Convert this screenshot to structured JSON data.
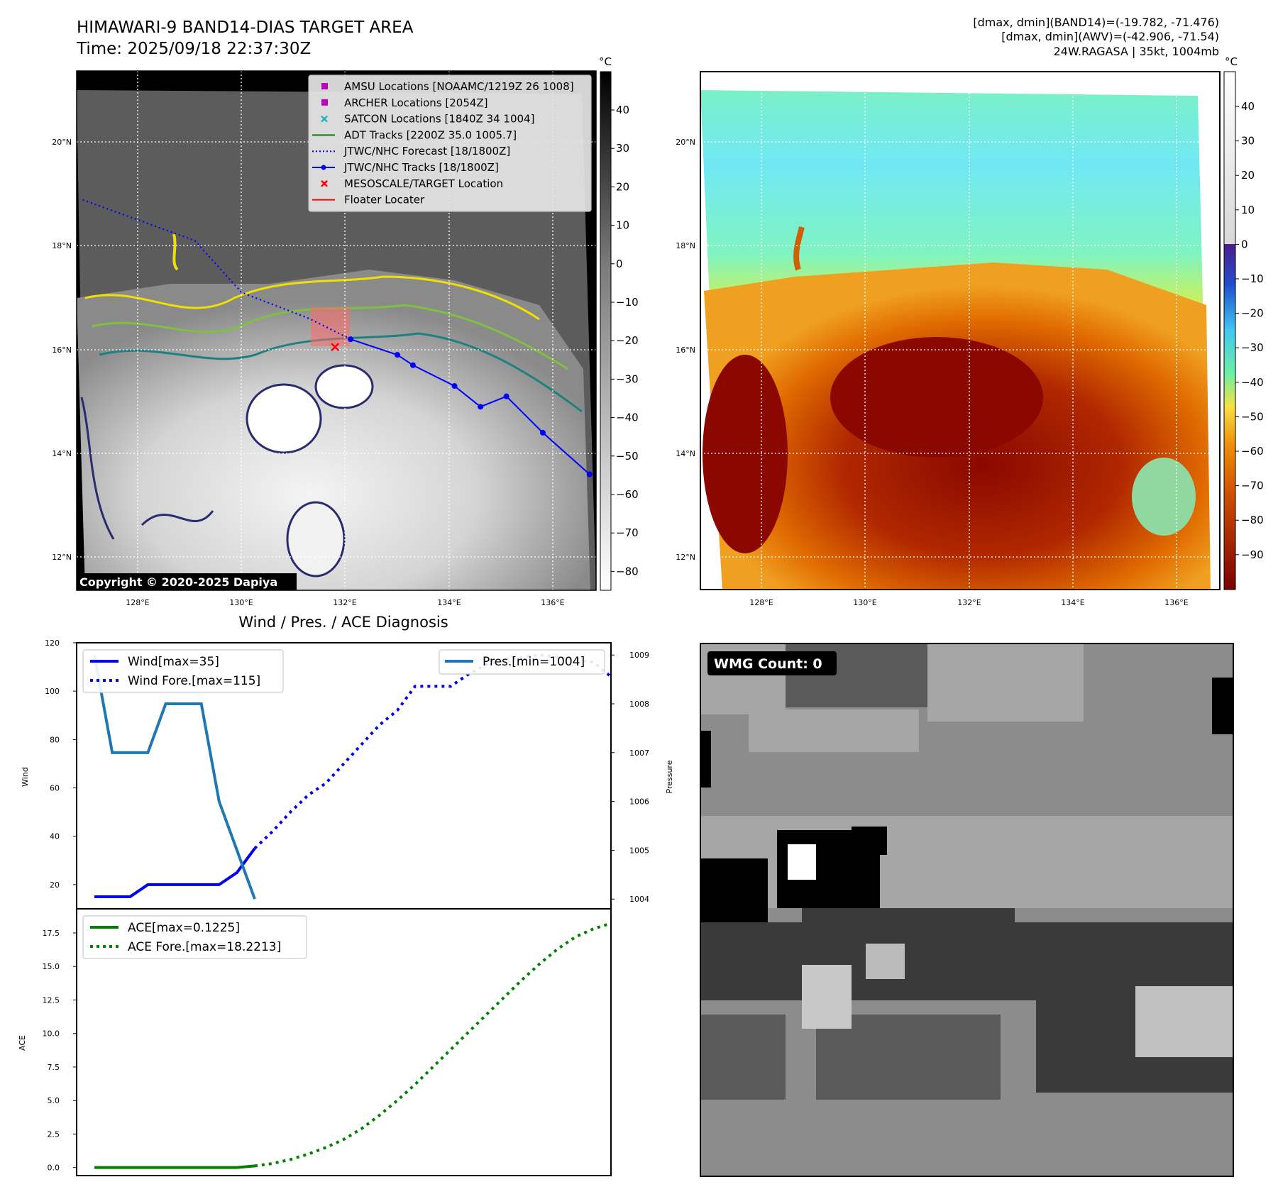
{
  "header": {
    "title": "HIMAWARI-9 BAND14-DIAS TARGET AREA",
    "time": "Time: 2025/09/18 22:37:30Z",
    "stats_band14": "[dmax, dmin](BAND14)=(-19.782, -71.476)",
    "stats_awv": "[dmax, dmin](AWV)=(-42.906, -71.54)",
    "storm": "24W.RAGASA | 35kt, 1004mb"
  },
  "ir_map": {
    "lat_labels": [
      "20°N",
      "18°N",
      "16°N",
      "14°N",
      "12°N"
    ],
    "lon_labels": [
      "128°E",
      "130°E",
      "132°E",
      "134°E",
      "136°E"
    ],
    "colorbar_unit": "°C",
    "colorbar_ticks": [
      "40",
      "30",
      "20",
      "10",
      "0",
      "−10",
      "−20",
      "−30",
      "−40",
      "−50",
      "−60",
      "−70",
      "−80"
    ],
    "copyright": "Copyright © 2020-2025 Dapiya",
    "legend": [
      {
        "label": "AMSU Locations [NOAAMC/1219Z 26 1008]",
        "color": "#c000c0",
        "marker": "square"
      },
      {
        "label": "ARCHER Locations [2054Z]",
        "color": "#c000c0",
        "marker": "square"
      },
      {
        "label": "SATCON Locations [1840Z 34 1004]",
        "color": "#22b8b8",
        "marker": "x"
      },
      {
        "label": "ADT Tracks [2200Z 35.0 1005.7]",
        "color": "#008000",
        "marker": "line"
      },
      {
        "label": "JTWC/NHC Forecast [18/1800Z]",
        "color": "#0000ff",
        "marker": "dotted"
      },
      {
        "label": "JTWC/NHC Tracks [18/1800Z]",
        "color": "#0000ff",
        "marker": "line-dot"
      },
      {
        "label": "MESOSCALE/TARGET Location",
        "color": "#ff0000",
        "marker": "x"
      },
      {
        "label": "Floater Locater",
        "color": "#ff0000",
        "marker": "line"
      }
    ],
    "jtwc_track": [
      [
        13.6,
        136.7
      ],
      [
        14.4,
        135.8
      ],
      [
        15.1,
        135.1
      ],
      [
        14.9,
        134.6
      ],
      [
        15.3,
        134.1
      ],
      [
        15.7,
        133.3
      ],
      [
        15.9,
        133.0
      ],
      [
        16.2,
        132.1
      ]
    ],
    "jtwc_forecast": [
      [
        16.2,
        132.1
      ],
      [
        16.6,
        131.3
      ],
      [
        17.1,
        130.0
      ],
      [
        18.1,
        129.1
      ],
      [
        18.9,
        126.9
      ]
    ],
    "target_location": [
      16.05,
      131.8
    ]
  },
  "wv_map": {
    "lat_labels": [
      "20°N",
      "18°N",
      "16°N",
      "14°N",
      "12°N"
    ],
    "lon_labels": [
      "128°E",
      "130°E",
      "132°E",
      "134°E",
      "136°E"
    ],
    "colorbar_unit": "°C",
    "colorbar_ticks": [
      "40",
      "30",
      "20",
      "10",
      "0",
      "−10",
      "−20",
      "−30",
      "−40",
      "−50",
      "−60",
      "−70",
      "−80",
      "−90"
    ]
  },
  "diagnosis": {
    "title": "Wind / Pres. / ACE Diagnosis",
    "wind_axis_label": "Wind",
    "pressure_axis_label": "Pressure",
    "ace_axis_label": "ACE",
    "wind_ticks": [
      "20",
      "40",
      "60",
      "80",
      "100",
      "120"
    ],
    "pressure_ticks": [
      "1004",
      "1005",
      "1006",
      "1007",
      "1008",
      "1009"
    ],
    "ace_ticks": [
      "0.0",
      "2.5",
      "5.0",
      "7.5",
      "10.0",
      "12.5",
      "15.0",
      "17.5"
    ]
  },
  "chart_data": [
    {
      "type": "line",
      "title": "Wind / Pres. / ACE Diagnosis",
      "ylabel": "Wind",
      "ylim": [
        10,
        120
      ],
      "y2label": "Pressure",
      "y2lim": [
        1003.8,
        1009.25
      ],
      "xlim": [
        0,
        30
      ],
      "series": [
        {
          "name": "Wind[max=35]",
          "axis": "left",
          "style": "solid",
          "color": "#0000ee",
          "x": [
            1,
            2,
            3,
            4,
            5,
            6,
            7,
            8,
            9,
            10
          ],
          "values": [
            15,
            15,
            15,
            20,
            20,
            20,
            20,
            20,
            25,
            35
          ]
        },
        {
          "name": "Wind Fore.[max=115]",
          "axis": "left",
          "style": "dotted",
          "color": "#0000ee",
          "x": [
            10,
            11,
            12,
            13,
            14,
            15,
            16,
            17,
            18,
            19,
            20,
            21,
            22,
            23,
            24,
            25,
            26,
            27,
            28,
            29,
            30
          ],
          "values": [
            35,
            42,
            50,
            57,
            62,
            70,
            78,
            86,
            92,
            102,
            102,
            102,
            107,
            111,
            113,
            114,
            115,
            114,
            113,
            112,
            106
          ]
        },
        {
          "name": "Pres.[min=1004]",
          "axis": "right",
          "style": "solid",
          "color": "#1f77b4",
          "x": [
            1,
            2,
            3,
            4,
            5,
            6,
            7,
            8,
            9,
            10
          ],
          "values": [
            1009,
            1007,
            1007,
            1007,
            1008,
            1008,
            1008,
            1006,
            1005,
            1004
          ]
        }
      ]
    },
    {
      "type": "line",
      "ylabel": "ACE",
      "ylim": [
        -0.6,
        19.3
      ],
      "xlim": [
        0,
        30
      ],
      "series": [
        {
          "name": "ACE[max=0.1225]",
          "style": "solid",
          "color": "#008000",
          "x": [
            1,
            2,
            3,
            4,
            5,
            6,
            7,
            8,
            9,
            10
          ],
          "values": [
            0,
            0,
            0,
            0,
            0,
            0,
            0,
            0,
            0,
            0.12
          ]
        },
        {
          "name": "ACE Fore.[max=18.2213]",
          "style": "dotted",
          "color": "#008000",
          "x": [
            10,
            11,
            12,
            13,
            14,
            15,
            16,
            17,
            18,
            19,
            20,
            21,
            22,
            23,
            24,
            25,
            26,
            27,
            28,
            29,
            30
          ],
          "values": [
            0.12,
            0.3,
            0.6,
            1.0,
            1.5,
            2.1,
            2.9,
            3.9,
            5.0,
            6.2,
            7.5,
            8.8,
            10.1,
            11.4,
            12.7,
            14.0,
            15.2,
            16.3,
            17.2,
            17.8,
            18.22
          ]
        }
      ]
    }
  ],
  "wmg_panel": {
    "label": "WMG Count: 0"
  }
}
